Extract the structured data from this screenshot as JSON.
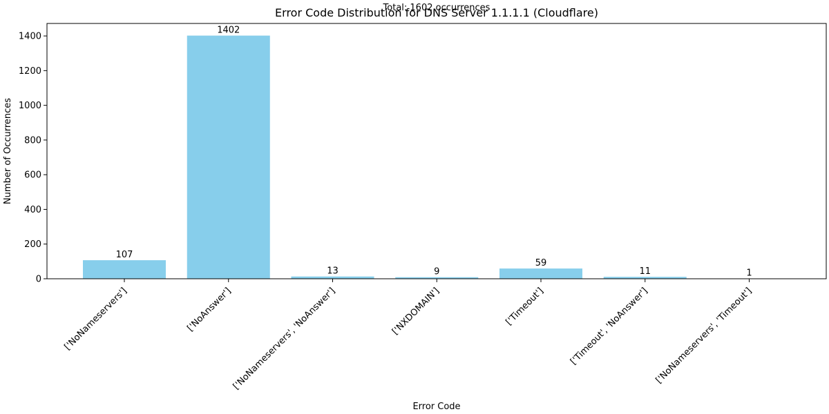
{
  "chart_data": {
    "type": "bar",
    "title": "Error Code Distribution for DNS Server 1.1.1.1 (Cloudflare)",
    "subtitle": "Total: 1602 occurrences",
    "xlabel": "Error Code",
    "ylabel": "Number of Occurrences",
    "categories": [
      "['NoNameservers']",
      "['NoAnswer']",
      "['NoNameservers', 'NoAnswer']",
      "['NXDOMAIN']",
      "['Timeout']",
      "['Timeout', 'NoAnswer']",
      "['NoNameservers', 'Timeout']"
    ],
    "values": [
      107,
      1402,
      13,
      9,
      59,
      11,
      1
    ],
    "data_labels": [
      "107",
      "1402",
      "13",
      "9",
      "59",
      "11",
      "1"
    ],
    "ylim": [
      0,
      1472
    ],
    "yticks": [
      0,
      200,
      400,
      600,
      800,
      1000,
      1200,
      1400
    ],
    "ytick_labels": [
      "0",
      "200",
      "400",
      "600",
      "800",
      "1000",
      "1200",
      "1400"
    ],
    "grid": false,
    "bar_color": "#87CEEB"
  }
}
